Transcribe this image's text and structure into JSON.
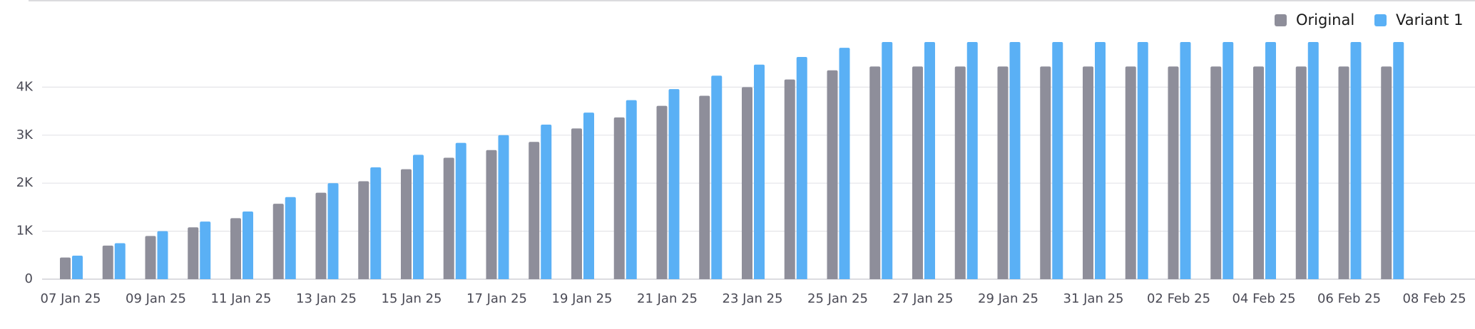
{
  "chart_data": {
    "type": "bar",
    "categories": [
      "07 Jan 25",
      null,
      "09 Jan 25",
      null,
      "11 Jan 25",
      null,
      "13 Jan 25",
      null,
      "15 Jan 25",
      null,
      "17 Jan 25",
      null,
      "19 Jan 25",
      null,
      "21 Jan 25",
      null,
      "23 Jan 25",
      null,
      "25 Jan 25",
      null,
      "27 Jan 25",
      null,
      "29 Jan 25",
      null,
      "31 Jan 25",
      null,
      "02 Feb 25",
      null,
      "04 Feb 25",
      null,
      "06 Feb 25",
      null,
      "08 Feb 25"
    ],
    "series": [
      {
        "name": "Original",
        "color": "#8e8e9a",
        "values": [
          450,
          700,
          900,
          1080,
          1270,
          1570,
          1800,
          2040,
          2290,
          2530,
          2690,
          2860,
          3140,
          3370,
          3610,
          3820,
          4000,
          4160,
          4350,
          4430,
          4430,
          4430,
          4430,
          4430,
          4430,
          4430,
          4430,
          4430,
          4430,
          4430,
          4430,
          4430,
          null
        ]
      },
      {
        "name": "Variant 1",
        "color": "#5ab0f5",
        "values": [
          490,
          750,
          1000,
          1200,
          1410,
          1710,
          2000,
          2330,
          2590,
          2840,
          3000,
          3220,
          3470,
          3730,
          3960,
          4240,
          4470,
          4630,
          4820,
          4940,
          4940,
          4940,
          4940,
          4940,
          4940,
          4940,
          4940,
          4940,
          4940,
          4940,
          4940,
          4940,
          null
        ]
      }
    ],
    "ylim": [
      0,
      5000
    ],
    "yticks": [
      0,
      {
        "value": 1000,
        "label": "1K"
      },
      {
        "value": 2000,
        "label": "2K"
      },
      {
        "value": 3000,
        "label": "3K"
      },
      {
        "value": 4000,
        "label": "4K"
      }
    ],
    "grid": true,
    "legend": "top-right"
  }
}
